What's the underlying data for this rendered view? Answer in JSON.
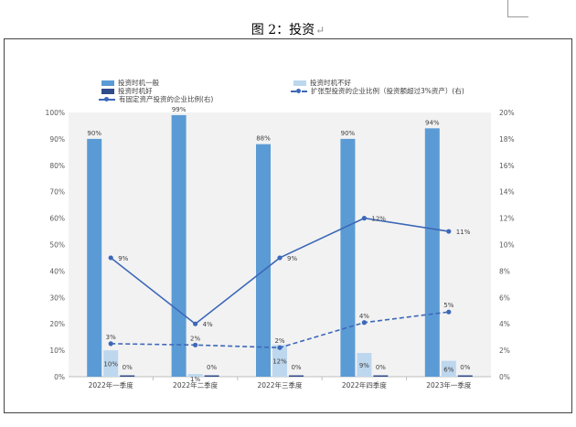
{
  "caption": {
    "text": "图 2：投资",
    "return_mark": "↵"
  },
  "chart_data": {
    "type": "bar",
    "categories": [
      "2022年一季度",
      "2022年二季度",
      "2022年三季度",
      "2022年四季度",
      "2023年一季度"
    ],
    "series": [
      {
        "name": "投资时机一般",
        "axis": "left",
        "kind": "bar",
        "color": "#5b9bd5",
        "values": [
          90,
          99,
          88,
          90,
          94
        ],
        "labels": [
          "90%",
          "99%",
          "88%",
          "90%",
          "94%"
        ]
      },
      {
        "name": "投资时机不好",
        "axis": "left",
        "kind": "bar",
        "color": "#bdd7ee",
        "values": [
          10,
          1,
          12,
          9,
          6
        ],
        "labels": [
          "10%",
          "1%",
          "12%",
          "9%",
          "6%"
        ]
      },
      {
        "name": "投资时机好",
        "axis": "left",
        "kind": "bar",
        "color": "#2f4b8a",
        "values": [
          0,
          0,
          0,
          0,
          0
        ],
        "labels": [
          "0%",
          "0%",
          "0%",
          "0%",
          "0%"
        ]
      },
      {
        "name": "有固定资产投资的企业比例(右)",
        "axis": "right",
        "kind": "line",
        "color": "#3d68b8",
        "values": [
          9,
          4,
          9,
          12,
          11
        ],
        "labels": [
          "9%",
          "4%",
          "9%",
          "12%",
          "11%"
        ]
      },
      {
        "name": "扩张型投资的企业比例（投资额超过3%资产）(右)",
        "axis": "right",
        "kind": "dashed-line",
        "color": "#3d68b8",
        "values": [
          2.5,
          2.4,
          2.2,
          4.1,
          4.9
        ],
        "labels": [
          "3%",
          "2%",
          "2%",
          "4%",
          "5%"
        ]
      }
    ],
    "y_left": {
      "range": [
        0,
        100
      ],
      "ticks": [
        "0%",
        "10%",
        "20%",
        "30%",
        "40%",
        "50%",
        "60%",
        "70%",
        "80%",
        "90%",
        "100%"
      ]
    },
    "y_right": {
      "range": [
        0,
        20
      ],
      "ticks": [
        "0%",
        "2%",
        "4%",
        "6%",
        "8%",
        "10%",
        "12%",
        "14%",
        "16%",
        "18%",
        "20%"
      ]
    },
    "plot_background": "#f2f2f2",
    "grid": false,
    "legend_position": "top"
  }
}
